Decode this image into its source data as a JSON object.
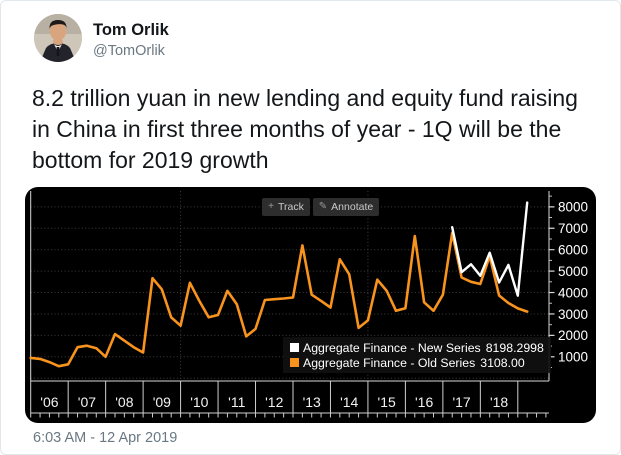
{
  "tweet": {
    "author_name": "Tom Orlik",
    "author_handle": "@TomOrlik",
    "body": "8.2 trillion yuan in new lending and equity fund raising in China in first three months of year - 1Q will be the bottom for 2019 growth",
    "timestamp": "6:03 AM - 12 Apr 2019"
  },
  "chart_toolbar": {
    "track_label": "Track",
    "track_icon_glyph": "+",
    "annotate_label": "Annotate",
    "annotate_icon_glyph": "✎"
  },
  "chart_data": {
    "type": "line",
    "x_unit": "quarterly, Q4 2005 - Q1 2019",
    "x_tick_labels": [
      "'06",
      "'07",
      "'08",
      "'09",
      "'10",
      "'11",
      "'12",
      "'13",
      "'14",
      "'15",
      "'16",
      "'17",
      "'18"
    ],
    "y_axis_side": "right",
    "y_tick_values": [
      1000,
      2000,
      3000,
      4000,
      5000,
      6000,
      7000,
      8000
    ],
    "y_grid_values": [
      0,
      1000,
      2000,
      3000,
      4000,
      5000,
      6000,
      7000,
      8000
    ],
    "v_grid_year_indices": [
      4,
      9
    ],
    "grid_style": "dotted",
    "legend_position": "bottom-right",
    "series": [
      {
        "name": "Aggregate Finance - New Series",
        "value_label": "8198.2998",
        "color": "#ffffff",
        "width": 2.4,
        "start_index": 45,
        "values": [
          7050,
          4950,
          5320,
          4780,
          5860,
          4470,
          5290,
          3850,
          8198.2998
        ]
      },
      {
        "name": "Aggregate Finance - Old Series",
        "value_label": "3108.00",
        "color": "#f8931d",
        "width": 2.6,
        "start_index": 0,
        "values": [
          950,
          900,
          750,
          560,
          650,
          1450,
          1520,
          1400,
          1000,
          2060,
          1750,
          1450,
          1200,
          4670,
          4150,
          2840,
          2450,
          4455,
          3610,
          2845,
          2950,
          4075,
          3455,
          1950,
          2300,
          3650,
          3690,
          3720,
          3770,
          6200,
          3900,
          3610,
          3300,
          5550,
          4850,
          2350,
          2700,
          4600,
          4080,
          3145,
          3270,
          6640,
          3545,
          3145,
          3900,
          6790,
          4700,
          4500,
          4400,
          5700,
          3860,
          3510,
          3260,
          3108
        ]
      }
    ]
  },
  "colors": {
    "accent_orange": "#f8931d",
    "series_white": "#ffffff",
    "chart_bg": "#000000",
    "grid": "#3e3e3e",
    "axis": "#d8d8d8"
  }
}
